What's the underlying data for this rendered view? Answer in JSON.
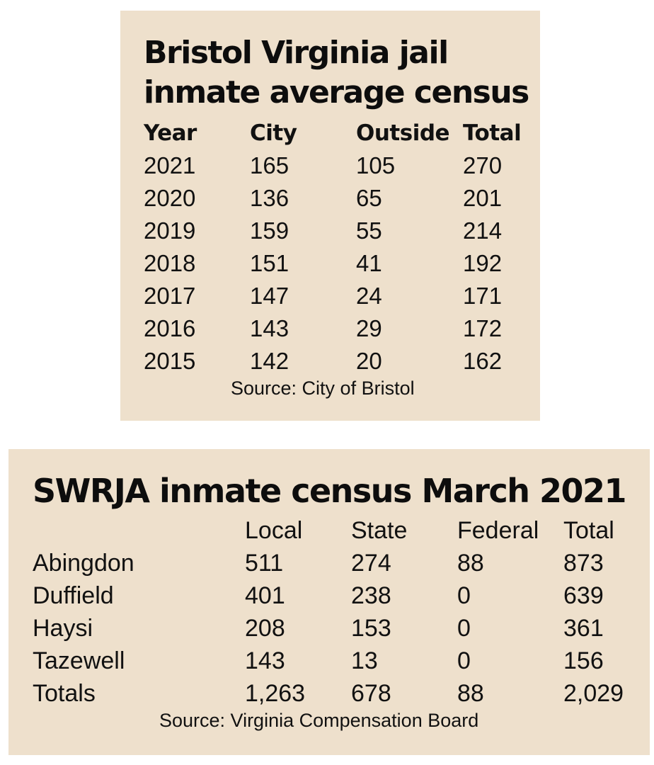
{
  "bristol": {
    "title_line1": "Bristol Virginia jail",
    "title_line2": "inmate average census",
    "headers": [
      "Year",
      "City",
      "Outside",
      "Total"
    ],
    "rows": [
      [
        "2021",
        "165",
        "105",
        "270"
      ],
      [
        "2020",
        "136",
        "65",
        "201"
      ],
      [
        "2019",
        "159",
        "55",
        "214"
      ],
      [
        "2018",
        "151",
        "41",
        "192"
      ],
      [
        "2017",
        "147",
        "24",
        "171"
      ],
      [
        "2016",
        "143",
        "29",
        "172"
      ],
      [
        "2015",
        "142",
        "20",
        "162"
      ]
    ],
    "source": "Source: City of Bristol"
  },
  "swrja": {
    "title": "SWRJA inmate census March 2021",
    "headers": [
      "",
      "Local",
      "State",
      "Federal",
      "Total"
    ],
    "rows": [
      [
        "Abingdon",
        "511",
        "274",
        "88",
        "873"
      ],
      [
        "Duffield",
        "401",
        "238",
        "0",
        "639"
      ],
      [
        "Haysi",
        "208",
        "153",
        "0",
        "361"
      ],
      [
        "Tazewell",
        "143",
        "13",
        "0",
        "156"
      ],
      [
        "Totals",
        "1,263",
        "678",
        "88",
        "2,029"
      ]
    ],
    "source": "Source: Virginia Compensation Board"
  },
  "colors": {
    "panel_background": "#eee0cc",
    "text": "#111111"
  }
}
